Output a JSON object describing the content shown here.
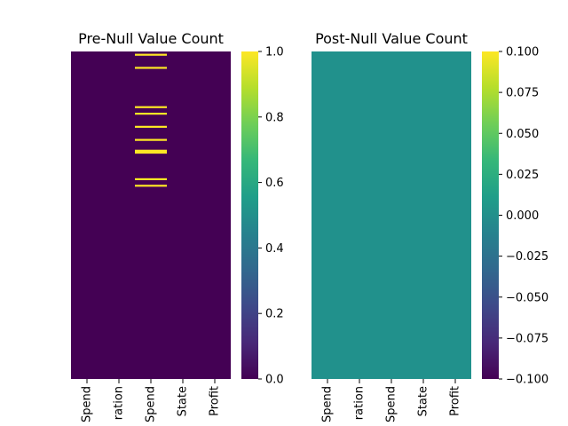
{
  "chart_data": [
    {
      "type": "heatmap",
      "title": "Pre-Null Value Count",
      "columns": [
        "Spend",
        "ration",
        "Spend",
        "State",
        "Profit"
      ],
      "n_rows": 50,
      "missing_cells": [
        {
          "column": "Spend",
          "rows": [
            0,
            2,
            8,
            9,
            11,
            13,
            15,
            19,
            20
          ]
        }
      ],
      "colormap": "viridis",
      "colorbar": {
        "range": [
          0.0,
          1.0
        ],
        "ticks": [
          "0.0",
          "0.2",
          "0.4",
          "0.6",
          "0.8",
          "1.0"
        ]
      },
      "xlabel": "",
      "ylabel": ""
    },
    {
      "type": "heatmap",
      "title": "Post-Null Value Count",
      "columns": [
        "Spend",
        "ration",
        "Spend",
        "State",
        "Profit"
      ],
      "n_rows": 50,
      "missing_cells": [],
      "colormap": "viridis",
      "colorbar": {
        "range": [
          -0.1,
          0.1
        ],
        "ticks": [
          "−0.100",
          "−0.075",
          "−0.050",
          "−0.025",
          "0.000",
          "0.025",
          "0.050",
          "0.075",
          "0.100"
        ]
      },
      "xlabel": "",
      "ylabel": ""
    }
  ],
  "colors": {
    "viridis_min": "#440154",
    "viridis_mid": "#21918c",
    "viridis_max": "#fde725",
    "pre_background": "#440154",
    "post_background": "#21918c"
  }
}
